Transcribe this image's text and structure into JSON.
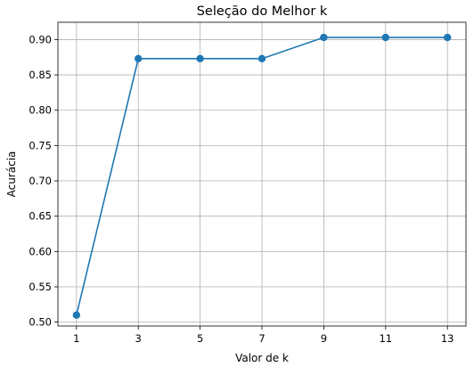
{
  "chart_data": {
    "type": "line",
    "title": "Seleção do Melhor k",
    "xlabel": "Valor de k",
    "ylabel": "Acurácia",
    "x": [
      1,
      3,
      5,
      7,
      9,
      11,
      13
    ],
    "x_ticks": [
      "1",
      "3",
      "5",
      "7",
      "9",
      "11",
      "13"
    ],
    "y_ticks": [
      "0.50",
      "0.55",
      "0.60",
      "0.65",
      "0.70",
      "0.75",
      "0.80",
      "0.85",
      "0.90"
    ],
    "xlim": [
      0.4,
      13.6
    ],
    "ylim": [
      0.4945,
      0.9245
    ],
    "grid": true,
    "series": [
      {
        "values": [
          0.51,
          0.873,
          0.873,
          0.873,
          0.903,
          0.903,
          0.903
        ],
        "color": "#1f77b4",
        "marker": "circle"
      }
    ]
  }
}
